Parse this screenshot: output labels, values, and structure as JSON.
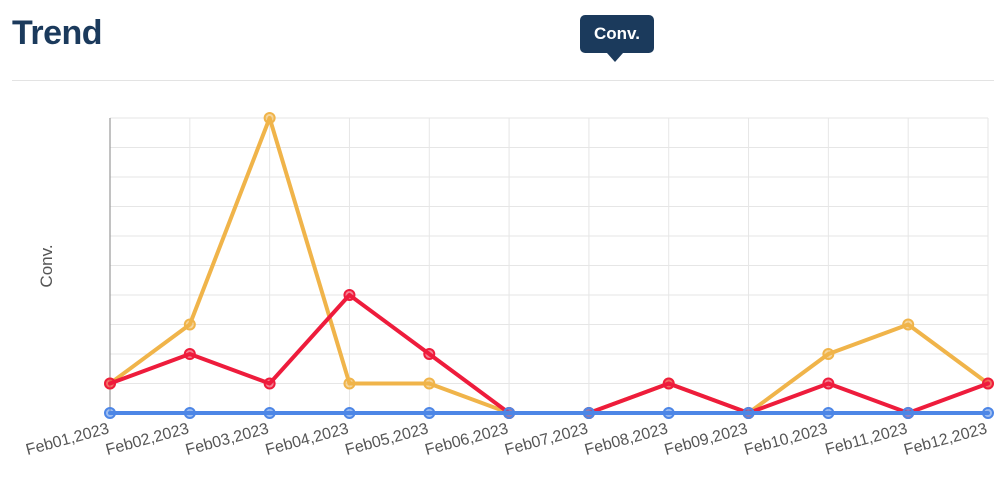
{
  "header": {
    "title": "Trend"
  },
  "tooltip": {
    "label": "Conv."
  },
  "chart_data": {
    "type": "line",
    "ylabel": "Conv.",
    "xlabel": "",
    "ylim": [
      0,
      10
    ],
    "grid": true,
    "categories": [
      "Feb01,2023",
      "Feb02,2023",
      "Feb03,2023",
      "Feb04,2023",
      "Feb05,2023",
      "Feb06,2023",
      "Feb07,2023",
      "Feb08,2023",
      "Feb09,2023",
      "Feb10,2023",
      "Feb11,2023",
      "Feb12,2023"
    ],
    "series": [
      {
        "color": "#f0b44a",
        "values": [
          1,
          3,
          10,
          1,
          1,
          0,
          0,
          1,
          0,
          2,
          3,
          1
        ]
      },
      {
        "color": "#ee1c3c",
        "values": [
          1,
          2,
          1,
          4,
          2,
          0,
          0,
          1,
          0,
          1,
          0,
          1
        ]
      },
      {
        "color": "#4d86e6",
        "values": [
          0,
          0,
          0,
          0,
          0,
          0,
          0,
          0,
          0,
          0,
          0,
          0
        ]
      }
    ]
  }
}
